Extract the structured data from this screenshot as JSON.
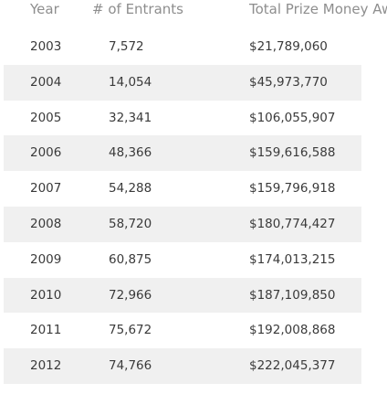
{
  "table": {
    "headers": [
      "Year",
      "# of Entrants",
      "Total Prize Money Awarded"
    ],
    "rows": [
      {
        "year": "2003",
        "entrants": "7,572",
        "prize": "$21,789,060"
      },
      {
        "year": "2004",
        "entrants": "14,054",
        "prize": "$45,973,770"
      },
      {
        "year": "2005",
        "entrants": "32,341",
        "prize": "$106,055,907"
      },
      {
        "year": "2006",
        "entrants": "48,366",
        "prize": "$159,616,588"
      },
      {
        "year": "2007",
        "entrants": "54,288",
        "prize": "$159,796,918"
      },
      {
        "year": "2008",
        "entrants": "58,720",
        "prize": "$180,774,427"
      },
      {
        "year": "2009",
        "entrants": "60,875",
        "prize": "$174,013,215"
      },
      {
        "year": "2010",
        "entrants": "72,966",
        "prize": "$187,109,850"
      },
      {
        "year": "2011",
        "entrants": "75,672",
        "prize": "$192,008,868"
      },
      {
        "year": "2012",
        "entrants": "74,766",
        "prize": "$222,045,377"
      }
    ]
  }
}
